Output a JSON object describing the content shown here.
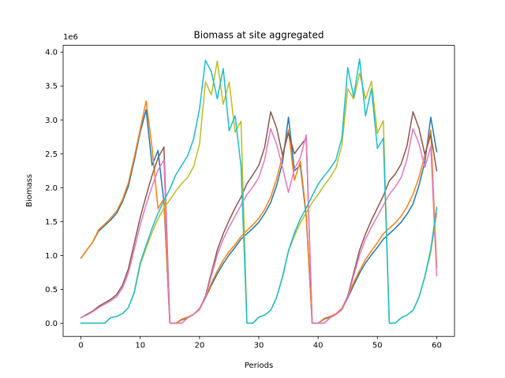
{
  "chart_data": {
    "type": "line",
    "title": "Biomass at site aggregated",
    "xlabel": "Periods",
    "ylabel": "Biomass",
    "y_offset_label": "1e6",
    "xlim": [
      -3,
      63
    ],
    "ylim": [
      -195000.0,
      4100000.0
    ],
    "x_ticks": [
      0,
      10,
      20,
      30,
      40,
      50,
      60
    ],
    "x_tick_labels": [
      "0",
      "10",
      "20",
      "30",
      "40",
      "50",
      "60"
    ],
    "y_ticks": [
      0,
      500000,
      1000000,
      1500000,
      2000000,
      2500000,
      3000000,
      3500000,
      4000000
    ],
    "y_tick_labels": [
      "0.0",
      "0.5",
      "1.0",
      "1.5",
      "2.0",
      "2.5",
      "3.0",
      "3.5",
      "4.0"
    ],
    "grid": false,
    "legend": "none",
    "series": [
      {
        "color": "#1f77b4",
        "x": [
          0,
          1,
          2,
          3,
          4,
          5,
          6,
          7,
          8,
          9,
          10,
          11,
          12,
          13,
          14,
          15,
          16,
          17,
          18,
          19,
          20,
          21,
          22,
          23,
          24,
          25,
          26,
          27,
          28,
          29,
          30,
          31,
          32,
          33,
          34,
          35,
          36,
          37,
          38,
          39,
          40,
          41,
          42,
          43,
          44,
          45,
          46,
          47,
          48,
          49,
          50,
          51,
          52,
          53,
          54,
          55,
          56,
          57,
          58,
          59,
          60
        ],
        "values": [
          960000,
          1080000,
          1200000,
          1360000,
          1440000,
          1520000,
          1620000,
          1790000,
          2020000,
          2400000,
          2820000,
          3150000,
          2330000,
          2550000,
          1780000,
          0,
          0,
          50000,
          80000,
          130000,
          210000,
          370000,
          560000,
          730000,
          880000,
          1010000,
          1120000,
          1240000,
          1320000,
          1400000,
          1490000,
          1620000,
          1780000,
          2030000,
          2370000,
          3040000,
          2250000,
          2330000,
          1570000,
          0,
          0,
          60000,
          90000,
          130000,
          200000,
          370000,
          560000,
          740000,
          890000,
          1010000,
          1120000,
          1240000,
          1320000,
          1400000,
          1490000,
          1610000,
          1760000,
          2030000,
          2380000,
          3040000,
          2530000
        ]
      },
      {
        "color": "#ff7f0e",
        "x": [
          0,
          1,
          2,
          3,
          4,
          5,
          6,
          7,
          8,
          9,
          10,
          11,
          12,
          13,
          14,
          15,
          16,
          17,
          18,
          19,
          20,
          21,
          22,
          23,
          24,
          25,
          26,
          27,
          28,
          29,
          30,
          31,
          32,
          33,
          34,
          35,
          36,
          37,
          38,
          39,
          40,
          41,
          42,
          43,
          44,
          45,
          46,
          47,
          48,
          49,
          50,
          51,
          52,
          53,
          54,
          55,
          56,
          57,
          58,
          59,
          60
        ],
        "values": [
          960000,
          1080000,
          1200000,
          1380000,
          1460000,
          1550000,
          1650000,
          1820000,
          2070000,
          2450000,
          2860000,
          3280000,
          2590000,
          1690000,
          1840000,
          0,
          0,
          60000,
          90000,
          130000,
          220000,
          380000,
          590000,
          770000,
          930000,
          1060000,
          1160000,
          1280000,
          1370000,
          1450000,
          1550000,
          1680000,
          1860000,
          2130000,
          2470000,
          2850000,
          2110000,
          2390000,
          1610000,
          0,
          0,
          70000,
          100000,
          140000,
          220000,
          390000,
          600000,
          780000,
          940000,
          1070000,
          1190000,
          1320000,
          1400000,
          1480000,
          1580000,
          1720000,
          1900000,
          2150000,
          2480000,
          2850000,
          820000
        ]
      },
      {
        "color": "#8c564b",
        "x": [
          0,
          1,
          2,
          3,
          4,
          5,
          6,
          7,
          8,
          9,
          10,
          11,
          12,
          13,
          14,
          15,
          16,
          17,
          18,
          19,
          20,
          21,
          22,
          23,
          24,
          25,
          26,
          27,
          28,
          29,
          30,
          31,
          32,
          33,
          34,
          35,
          36,
          37,
          38,
          39,
          40,
          41,
          42,
          43,
          44,
          45,
          46,
          47,
          48,
          49,
          50,
          51,
          52,
          53,
          54,
          55,
          56,
          57,
          58,
          59,
          60
        ],
        "values": [
          80000,
          130000,
          180000,
          250000,
          300000,
          350000,
          420000,
          560000,
          800000,
          1180000,
          1560000,
          1880000,
          2180000,
          2440000,
          2600000,
          0,
          0,
          0,
          80000,
          130000,
          200000,
          400000,
          740000,
          1080000,
          1320000,
          1520000,
          1700000,
          1860000,
          2060000,
          2190000,
          2330000,
          2600000,
          3120000,
          2880000,
          2480000,
          2810000,
          2500000,
          2620000,
          2730000,
          0,
          0,
          0,
          80000,
          130000,
          200000,
          400000,
          740000,
          1080000,
          1320000,
          1520000,
          1700000,
          1880000,
          2100000,
          2200000,
          2350000,
          2620000,
          3120000,
          2880000,
          2490000,
          2780000,
          2250000
        ]
      },
      {
        "color": "#e377c2",
        "x": [
          0,
          1,
          2,
          3,
          4,
          5,
          6,
          7,
          8,
          9,
          10,
          11,
          12,
          13,
          14,
          15,
          16,
          17,
          18,
          19,
          20,
          21,
          22,
          23,
          24,
          25,
          26,
          27,
          28,
          29,
          30,
          31,
          32,
          33,
          34,
          35,
          36,
          37,
          38,
          39,
          40,
          41,
          42,
          43,
          44,
          45,
          46,
          47,
          48,
          49,
          50,
          51,
          52,
          53,
          54,
          55,
          56,
          57,
          58,
          59,
          60
        ],
        "values": [
          80000,
          120000,
          170000,
          230000,
          280000,
          330000,
          390000,
          520000,
          740000,
          1090000,
          1450000,
          1750000,
          2020000,
          2260000,
          2410000,
          0,
          0,
          0,
          80000,
          130000,
          200000,
          380000,
          700000,
          1010000,
          1240000,
          1420000,
          1580000,
          1740000,
          1900000,
          2010000,
          2150000,
          2420000,
          2870000,
          2640000,
          2300000,
          1930000,
          2280000,
          2440000,
          2780000,
          0,
          0,
          0,
          80000,
          130000,
          200000,
          380000,
          700000,
          1010000,
          1240000,
          1420000,
          1580000,
          1740000,
          1900000,
          2010000,
          2150000,
          2420000,
          2870000,
          2650000,
          2300000,
          2610000,
          700000
        ]
      },
      {
        "color": "#bcbd22",
        "x": [
          0,
          1,
          2,
          3,
          4,
          5,
          6,
          7,
          8,
          9,
          10,
          11,
          12,
          13,
          14,
          15,
          16,
          17,
          18,
          19,
          20,
          21,
          22,
          23,
          24,
          25,
          26,
          27,
          28,
          29,
          30,
          31,
          32,
          33,
          34,
          35,
          36,
          37,
          38,
          39,
          40,
          41,
          42,
          43,
          44,
          45,
          46,
          47,
          48,
          49,
          50,
          51,
          52,
          53,
          54,
          55,
          56,
          57,
          58,
          59,
          60
        ],
        "values": [
          0,
          0,
          0,
          0,
          0,
          80000,
          100000,
          140000,
          230000,
          450000,
          860000,
          1110000,
          1340000,
          1540000,
          1700000,
          1820000,
          1950000,
          2060000,
          2150000,
          2310000,
          2640000,
          3560000,
          3370000,
          3870000,
          3230000,
          3560000,
          2820000,
          2980000,
          0,
          0,
          90000,
          120000,
          190000,
          380000,
          680000,
          1060000,
          1290000,
          1480000,
          1630000,
          1780000,
          1900000,
          2030000,
          2150000,
          2290000,
          2620000,
          3460000,
          3310000,
          3690000,
          3310000,
          3570000,
          2800000,
          2990000,
          0,
          0,
          80000,
          120000,
          190000,
          380000,
          680000,
          1050000,
          1620000
        ]
      },
      {
        "color": "#17becf",
        "x": [
          0,
          1,
          2,
          3,
          4,
          5,
          6,
          7,
          8,
          9,
          10,
          11,
          12,
          13,
          14,
          15,
          16,
          17,
          18,
          19,
          20,
          21,
          22,
          23,
          24,
          25,
          26,
          27,
          28,
          29,
          30,
          31,
          32,
          33,
          34,
          35,
          36,
          37,
          38,
          39,
          40,
          41,
          42,
          43,
          44,
          45,
          46,
          47,
          48,
          49,
          50,
          51,
          52,
          53,
          54,
          55,
          56,
          57,
          58,
          59,
          60
        ],
        "values": [
          0,
          0,
          0,
          0,
          0,
          80000,
          100000,
          140000,
          230000,
          460000,
          890000,
          1150000,
          1400000,
          1620000,
          1810000,
          1980000,
          2190000,
          2330000,
          2470000,
          2720000,
          3160000,
          3880000,
          3710000,
          3310000,
          3760000,
          2840000,
          3060000,
          2320000,
          0,
          0,
          90000,
          120000,
          190000,
          380000,
          690000,
          1070000,
          1330000,
          1540000,
          1700000,
          1880000,
          2050000,
          2170000,
          2280000,
          2410000,
          2730000,
          3770000,
          3340000,
          3900000,
          3060000,
          3460000,
          2580000,
          2730000,
          0,
          0,
          80000,
          120000,
          190000,
          380000,
          690000,
          1090000,
          1710000
        ]
      }
    ]
  }
}
